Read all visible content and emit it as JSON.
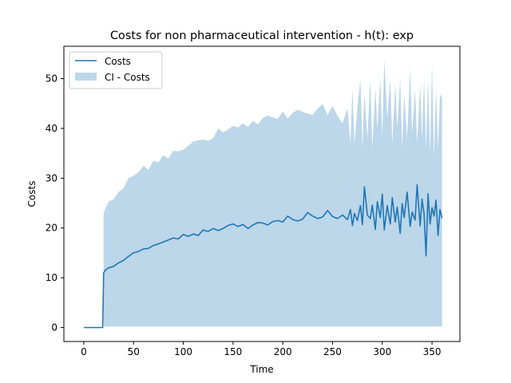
{
  "chart_data": {
    "type": "line",
    "title": "Costs for non pharmaceutical intervention - h(t): exp",
    "xlabel": "Time",
    "ylabel": "Costs",
    "xlim": [
      -20,
      378
    ],
    "ylim": [
      -2.8,
      56.5
    ],
    "xticks": [
      0,
      50,
      100,
      150,
      200,
      250,
      300,
      350
    ],
    "yticks": [
      0,
      10,
      20,
      30,
      40,
      50
    ],
    "legend": {
      "placement": "top-left",
      "entries": [
        "Costs",
        "CI - Costs"
      ]
    },
    "colors": {
      "line": "#1f77b4",
      "band": "#bcd6ea"
    },
    "series": [
      {
        "name": "Costs",
        "x": [
          0,
          19,
          20,
          22,
          25,
          30,
          35,
          40,
          45,
          50,
          55,
          60,
          65,
          70,
          75,
          80,
          85,
          90,
          95,
          100,
          105,
          110,
          115,
          120,
          125,
          130,
          135,
          140,
          145,
          150,
          155,
          160,
          165,
          170,
          175,
          180,
          185,
          190,
          195,
          200,
          205,
          210,
          215,
          220,
          225,
          230,
          235,
          240,
          245,
          250,
          255,
          260,
          265,
          268,
          270,
          272,
          275,
          278,
          280,
          282,
          285,
          288,
          290,
          293,
          295,
          298,
          300,
          302,
          305,
          308,
          310,
          313,
          315,
          318,
          320,
          322,
          325,
          328,
          330,
          333,
          335,
          338,
          340,
          342,
          344,
          346,
          348,
          350,
          352,
          354,
          356,
          358,
          360
        ],
        "values": [
          0,
          0,
          11,
          11.6,
          12,
          12.3,
          13,
          13.5,
          14.3,
          15,
          15.3,
          15.8,
          15.9,
          16.5,
          16.8,
          17.2,
          17.6,
          18,
          17.8,
          18.7,
          18.3,
          18.8,
          18.5,
          19.6,
          19.3,
          19.9,
          19.5,
          19.9,
          20.5,
          20.8,
          20.3,
          20.7,
          19.9,
          20.6,
          21.1,
          21,
          20.6,
          21.3,
          21.5,
          21.2,
          22.4,
          21.7,
          21.4,
          21.8,
          23.1,
          22.4,
          21.9,
          22.2,
          23.5,
          22.3,
          21.9,
          22.6,
          21.7,
          23.7,
          20.5,
          22.9,
          21.5,
          24.5,
          20.7,
          28.3,
          22.6,
          21.9,
          24.6,
          19.7,
          25.3,
          22.1,
          26.8,
          19.6,
          24.5,
          20.8,
          26.1,
          21.2,
          24.2,
          18.9,
          24.9,
          22.1,
          27.2,
          20.3,
          23.2,
          21.6,
          28.7,
          20.4,
          25.8,
          22.9,
          14.4,
          26.9,
          20.8,
          24.1,
          22.4,
          25.6,
          18.5,
          23.7,
          22
        ]
      },
      {
        "name": "CI - Costs",
        "x": [
          20,
          22,
          25,
          30,
          35,
          40,
          45,
          50,
          55,
          60,
          65,
          70,
          75,
          80,
          85,
          90,
          95,
          100,
          105,
          110,
          115,
          120,
          125,
          130,
          135,
          140,
          145,
          150,
          155,
          160,
          165,
          170,
          175,
          180,
          185,
          190,
          195,
          200,
          205,
          210,
          215,
          220,
          225,
          230,
          235,
          240,
          245,
          250,
          255,
          260,
          265,
          268,
          270,
          272,
          275,
          278,
          280,
          282,
          285,
          288,
          290,
          293,
          295,
          298,
          300,
          302,
          305,
          308,
          310,
          313,
          315,
          318,
          320,
          322,
          325,
          328,
          330,
          333,
          335,
          338,
          340,
          342,
          344,
          346,
          348,
          350,
          352,
          354,
          356,
          358,
          360
        ],
        "lower": [
          0.2,
          0.2,
          0.2,
          0.2,
          0.2,
          0.2,
          0.2,
          0.2,
          0.2,
          0.2,
          0.2,
          0.2,
          0.2,
          0.2,
          0.2,
          0.2,
          0.2,
          0.2,
          0.2,
          0.2,
          0.2,
          0.2,
          0.2,
          0.2,
          0.2,
          0.2,
          0.2,
          0.2,
          0.2,
          0.2,
          0.2,
          0.2,
          0.2,
          0.2,
          0.2,
          0.2,
          0.2,
          0.2,
          0.2,
          0.2,
          0.2,
          0.2,
          0.2,
          0.2,
          0.2,
          0.2,
          0.2,
          0.2,
          0.2,
          0.2,
          0.2,
          0.2,
          0.2,
          0.2,
          0.2,
          0.2,
          0.2,
          0.2,
          0.2,
          0.2,
          0.2,
          0.2,
          0.2,
          0.2,
          0.2,
          0.2,
          0.2,
          0.2,
          0.2,
          0.2,
          0.2,
          0.2,
          0.2,
          0.2,
          0.2,
          0.2,
          0.2,
          0.2,
          0.2,
          0.2,
          0.2,
          0.2,
          0.2,
          0.2,
          0.2,
          0.2,
          0.2,
          0.2,
          0.2,
          0.2,
          0.2
        ],
        "upper": [
          23,
          24,
          25.3,
          25.8,
          27.2,
          28,
          30,
          30.5,
          31.2,
          32.5,
          31.7,
          33.5,
          33.2,
          34.6,
          33.9,
          35.5,
          35.4,
          35.7,
          36.5,
          37.4,
          37.6,
          37.8,
          37.5,
          38,
          40,
          39.2,
          39.8,
          40.5,
          40.2,
          41,
          40.3,
          41.5,
          40.8,
          42.1,
          42.6,
          42.2,
          41.9,
          43.4,
          42,
          43.1,
          43.8,
          43.3,
          43,
          42.7,
          44,
          44.9,
          42.7,
          44.5,
          42.5,
          41,
          44,
          37,
          48,
          37,
          44,
          50,
          36,
          47,
          38,
          50,
          36,
          48,
          40,
          50,
          38,
          54,
          42,
          50,
          37,
          49,
          40,
          50,
          36,
          47,
          38,
          52,
          39,
          48,
          37,
          49,
          38,
          50,
          36,
          50,
          35,
          53,
          34,
          48,
          36,
          47,
          46
        ]
      }
    ]
  }
}
